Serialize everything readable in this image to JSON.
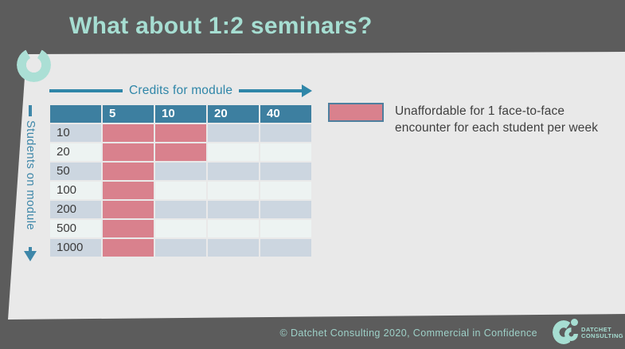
{
  "title": "What about 1:2 seminars?",
  "axes": {
    "x_label": "Credits for module",
    "y_label": "Students on module"
  },
  "matrix": {
    "columns": [
      "5",
      "10",
      "20",
      "40"
    ],
    "rows": [
      {
        "label": "10",
        "unaffordable": [
          true,
          true,
          false,
          false
        ]
      },
      {
        "label": "20",
        "unaffordable": [
          true,
          true,
          false,
          false
        ]
      },
      {
        "label": "50",
        "unaffordable": [
          true,
          false,
          false,
          false
        ]
      },
      {
        "label": "100",
        "unaffordable": [
          true,
          false,
          false,
          false
        ]
      },
      {
        "label": "200",
        "unaffordable": [
          true,
          false,
          false,
          false
        ]
      },
      {
        "label": "500",
        "unaffordable": [
          true,
          false,
          false,
          false
        ]
      },
      {
        "label": "1000",
        "unaffordable": [
          true,
          false,
          false,
          false
        ]
      }
    ]
  },
  "legend": {
    "text": "Unaffordable for 1 face-to-face encounter for each student per week"
  },
  "footer": {
    "copyright": "© Datchet Consulting 2020, Commercial in Confidence",
    "logo": {
      "line1": "DATCHET",
      "line2": "CONSULTING"
    }
  },
  "colors": {
    "background": "#5c5c5c",
    "card": "#e9e9e9",
    "header_teal": "#3d7fa0",
    "arrow_teal": "#2f86a8",
    "unaffordable_pink": "#d9818d",
    "row_blue_gray": "#ccd6e0",
    "row_off_white": "#edf3f2",
    "title_mint": "#a6ded2",
    "footer_mint": "#9ed1c8",
    "legend_border": "#4e7f9e"
  }
}
